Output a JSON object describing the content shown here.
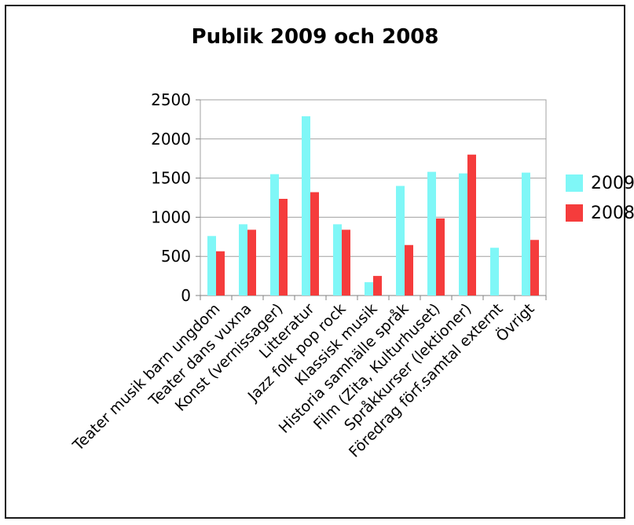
{
  "chart_data": {
    "type": "bar",
    "title": "Publik 2009 och 2008",
    "categories": [
      "Teater musik barn ungdom",
      "Teater dans vuxna",
      "Konst (vernissager)",
      "Litteratur",
      "Jazz folk pop rock",
      "Klassisk musik",
      "Historia samhälle språk",
      "Film (Zita, Kulturhuset)",
      "Språkkurser (lektioner)",
      "Föredrag förf.samtal externt",
      "Övrigt"
    ],
    "series": [
      {
        "name": "2009",
        "color": "#7ff7f7",
        "values": [
          760,
          910,
          1550,
          2290,
          910,
          170,
          1400,
          1580,
          1560,
          610,
          1570
        ]
      },
      {
        "name": "2008",
        "color": "#f53c3c",
        "values": [
          565,
          840,
          1235,
          1320,
          840,
          250,
          645,
          985,
          1800,
          0,
          710
        ]
      }
    ],
    "ylim": [
      0,
      2500
    ],
    "yticks": [
      "0",
      "500",
      "1000",
      "1500",
      "2000",
      "2500"
    ],
    "grid": true,
    "legend_position": "right"
  }
}
